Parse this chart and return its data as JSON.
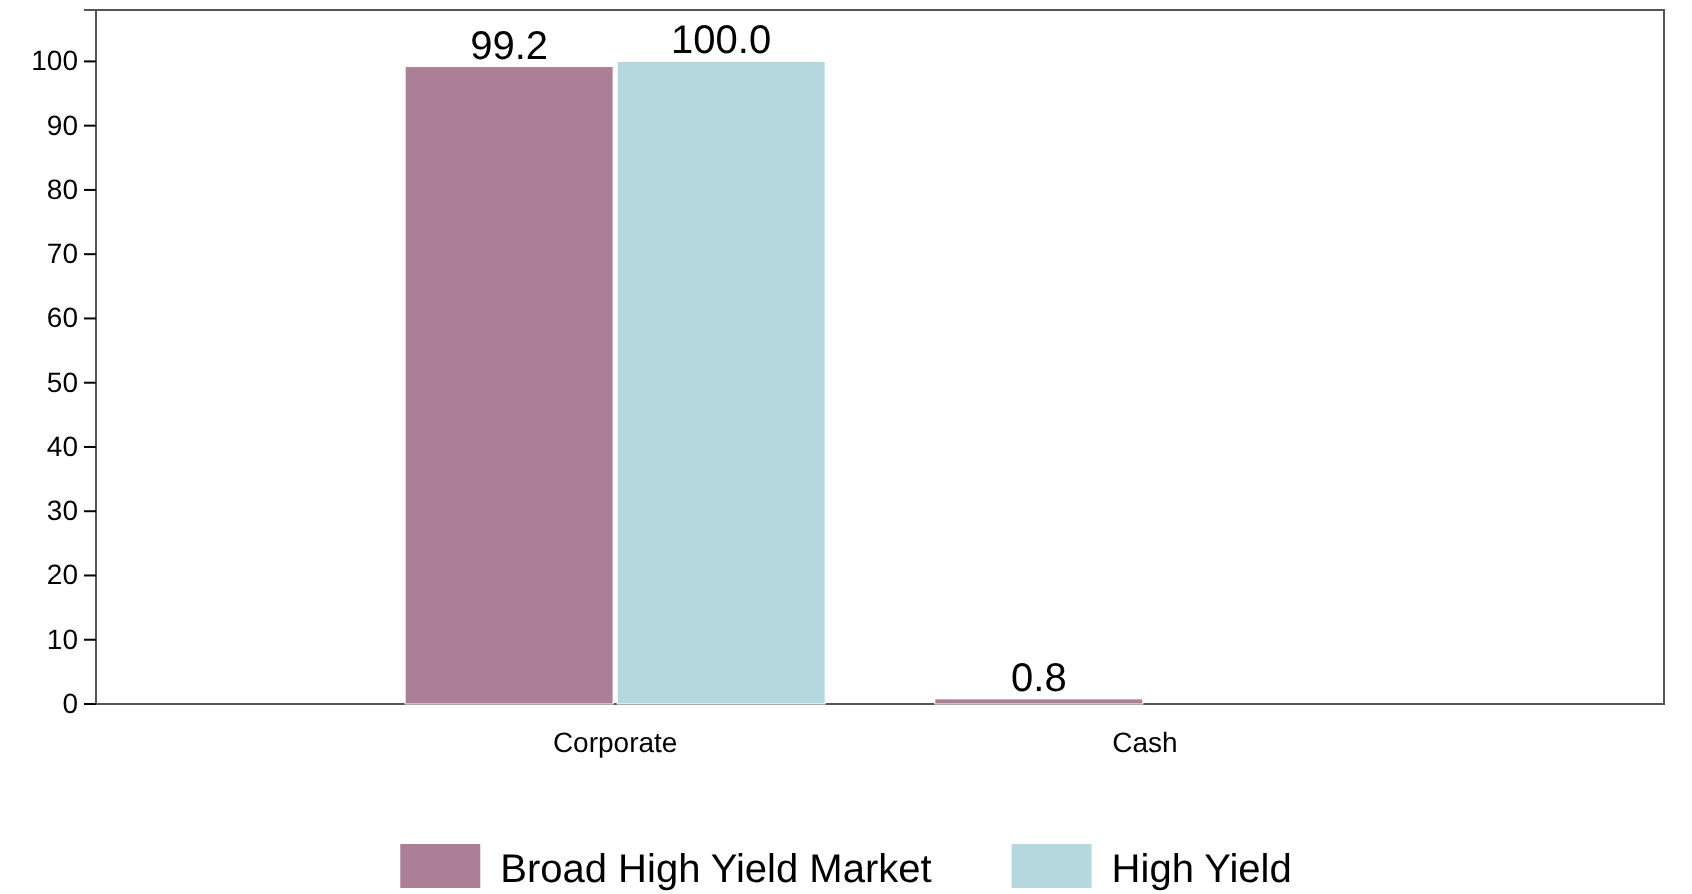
{
  "chart_data": {
    "type": "bar",
    "categories": [
      "Corporate",
      "Cash"
    ],
    "series": [
      {
        "name": "Broad High Yield Market",
        "color": "#ad7f96",
        "values": [
          99.2,
          0.8
        ],
        "value_labels": [
          "99.2",
          "0.8"
        ]
      },
      {
        "name": "High Yield",
        "color": "#b4d8dd",
        "values": [
          100.0,
          0
        ],
        "value_labels": [
          "100.0",
          null
        ]
      }
    ],
    "ylim": [
      0,
      108
    ],
    "yticks": [
      0,
      10,
      20,
      30,
      40,
      50,
      60,
      70,
      80,
      90,
      100
    ],
    "grid": false,
    "legend": "bottom"
  }
}
